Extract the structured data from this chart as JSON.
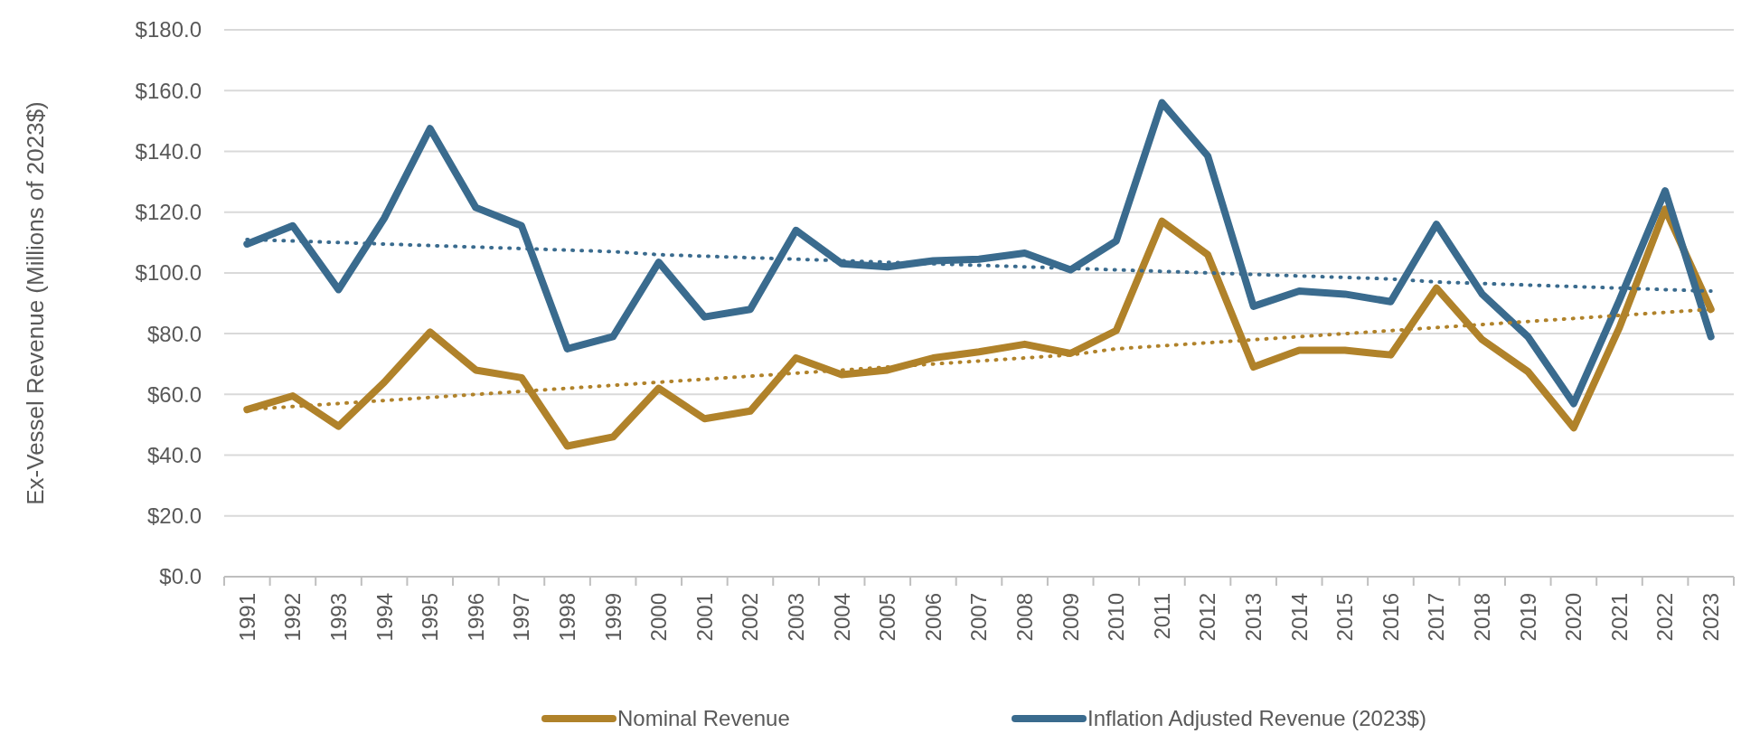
{
  "chart_data": {
    "type": "line",
    "ylabel": "Ex-Vessel Revenue (Millions of 2023$)",
    "categories": [
      "1991",
      "1992",
      "1993",
      "1994",
      "1995",
      "1996",
      "1997",
      "1998",
      "1999",
      "2000",
      "2001",
      "2002",
      "2003",
      "2004",
      "2005",
      "2006",
      "2007",
      "2008",
      "2009",
      "2010",
      "2011",
      "2012",
      "2013",
      "2014",
      "2015",
      "2016",
      "2017",
      "2018",
      "2019",
      "2020",
      "2021",
      "2022",
      "2023"
    ],
    "series": [
      {
        "name": "Nominal Revenue",
        "color": "#b0822a",
        "values": [
          55,
          59.5,
          49.5,
          64,
          80.5,
          68,
          65.5,
          43,
          46,
          62,
          52,
          54.5,
          72,
          66.5,
          68,
          72,
          74,
          76.5,
          73.5,
          81,
          117,
          106,
          69,
          74.5,
          74.5,
          73,
          95,
          78,
          67.5,
          49,
          82,
          121,
          88
        ]
      },
      {
        "name": "Inflation Adjusted Revenue (2023$)",
        "color": "#3a6b8e",
        "values": [
          109.5,
          115.5,
          94.5,
          118,
          147.5,
          121.5,
          115.5,
          75,
          79,
          103.5,
          85.5,
          88,
          114,
          103,
          102,
          104,
          104.5,
          106.5,
          101,
          110.5,
          156,
          138.5,
          89,
          94,
          93,
          90.5,
          116,
          93,
          79,
          57,
          91,
          127,
          79
        ]
      },
      {
        "type": "line",
        "line_style": "dotted",
        "color": "#b0822a",
        "values": [
          55,
          56,
          57,
          58,
          59,
          60,
          61,
          62,
          63,
          64,
          65,
          66,
          67,
          68,
          69,
          70,
          71,
          72,
          73,
          75,
          76,
          77,
          78,
          79,
          80,
          81,
          82,
          83,
          84,
          85,
          86,
          87,
          88
        ]
      },
      {
        "type": "line",
        "line_style": "dotted",
        "color": "#3a6b8e",
        "values": [
          111,
          110.5,
          110,
          109.5,
          109,
          108.5,
          108,
          107.5,
          107,
          106,
          105.5,
          105,
          104.5,
          104,
          103.5,
          103,
          102.5,
          102,
          101.5,
          101,
          100.5,
          100,
          99.5,
          99,
          98.5,
          98,
          97,
          96.5,
          96,
          95.5,
          95,
          94.5,
          94
        ]
      }
    ],
    "ylim": [
      0,
      180
    ],
    "yticks": [
      {
        "value": 0,
        "label": "$0.0"
      },
      {
        "value": 20,
        "label": "$20.0"
      },
      {
        "value": 40,
        "label": "$40.0"
      },
      {
        "value": 60,
        "label": "$60.0"
      },
      {
        "value": 80,
        "label": "$80.0"
      },
      {
        "value": 100,
        "label": "$100.0"
      },
      {
        "value": 120,
        "label": "$120.0"
      },
      {
        "value": 140,
        "label": "$140.0"
      },
      {
        "value": 160,
        "label": "$160.0"
      },
      {
        "value": 180,
        "label": "$180.0"
      }
    ],
    "grid": "y",
    "legend": "bottom",
    "line_style": "solid",
    "marker": "none"
  }
}
